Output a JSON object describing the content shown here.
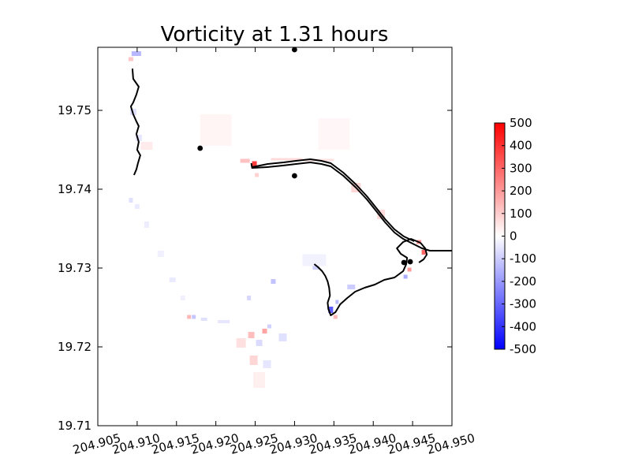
{
  "chart_data": {
    "type": "heatmap",
    "title": "Vorticity at 1.31 hours",
    "xlabel": "",
    "ylabel": "",
    "xlim": [
      204.905,
      204.95
    ],
    "ylim": [
      19.71,
      19.758
    ],
    "x_ticks": [
      "204.905",
      "204.910",
      "204.915",
      "204.920",
      "204.925",
      "204.930",
      "204.935",
      "204.940",
      "204.945",
      "204.950"
    ],
    "x_tick_values": [
      204.905,
      204.91,
      204.915,
      204.92,
      204.925,
      204.93,
      204.935,
      204.94,
      204.945,
      204.95
    ],
    "y_ticks": [
      "19.71",
      "19.72",
      "19.73",
      "19.74",
      "19.75"
    ],
    "y_tick_values": [
      19.71,
      19.72,
      19.73,
      19.74,
      19.75
    ],
    "colorbar": {
      "min": -500,
      "max": 500,
      "ticks": [
        "-500",
        "-400",
        "-300",
        "-200",
        "-100",
        "0",
        "100",
        "200",
        "300",
        "400",
        "500"
      ],
      "tick_values": [
        -500,
        -400,
        -300,
        -200,
        -100,
        0,
        100,
        200,
        300,
        400,
        500
      ],
      "colormap": "bwr",
      "colors": {
        "low": "#0000ff",
        "mid": "#ffffff",
        "high": "#ff0000"
      }
    },
    "gauge_points": [
      {
        "x": 204.93,
        "y": 19.7577
      },
      {
        "x": 204.918,
        "y": 19.7452
      },
      {
        "x": 204.93,
        "y": 19.7417
      },
      {
        "x": 204.9439,
        "y": 19.7307
      },
      {
        "x": 204.9447,
        "y": 19.7308
      }
    ],
    "coastlines": [
      {
        "name": "west-shore",
        "points": [
          [
            204.9094,
            19.7553
          ],
          [
            204.9095,
            19.754
          ],
          [
            204.9102,
            19.753
          ],
          [
            204.9099,
            19.752
          ],
          [
            204.9095,
            19.751
          ],
          [
            204.9092,
            19.7505
          ],
          [
            204.9095,
            19.7495
          ],
          [
            204.9099,
            19.7486
          ],
          [
            204.9102,
            19.748
          ],
          [
            204.9099,
            19.747
          ],
          [
            204.9102,
            19.746
          ],
          [
            204.91,
            19.745
          ],
          [
            204.9104,
            19.7443
          ],
          [
            204.9101,
            19.7433
          ],
          [
            204.9099,
            19.7425
          ],
          [
            204.9096,
            19.7418
          ]
        ]
      },
      {
        "name": "main-coast",
        "points": [
          [
            204.9245,
            19.7433
          ],
          [
            204.9246,
            19.7427
          ],
          [
            204.9265,
            19.7428
          ],
          [
            204.9285,
            19.743
          ],
          [
            204.9302,
            19.7432
          ],
          [
            204.932,
            19.7434
          ],
          [
            204.9334,
            19.7432
          ],
          [
            204.9346,
            19.7429
          ],
          [
            204.9362,
            19.7417
          ],
          [
            204.9378,
            19.7402
          ],
          [
            204.9392,
            19.7387
          ],
          [
            204.9404,
            19.7372
          ],
          [
            204.9415,
            19.7358
          ],
          [
            204.9427,
            19.7345
          ],
          [
            204.9438,
            19.7337
          ],
          [
            204.9452,
            19.733
          ],
          [
            204.9462,
            19.7325
          ],
          [
            204.9472,
            19.7322
          ],
          [
            204.9487,
            19.7322
          ],
          [
            204.95,
            19.7322
          ]
        ]
      },
      {
        "name": "main-coast-inner",
        "points": [
          [
            204.9246,
            19.7428
          ],
          [
            204.9266,
            19.7432
          ],
          [
            204.9286,
            19.7434
          ],
          [
            204.9302,
            19.7436
          ],
          [
            204.932,
            19.7438
          ],
          [
            204.9334,
            19.7436
          ],
          [
            204.9346,
            19.7433
          ],
          [
            204.9362,
            19.7421
          ],
          [
            204.9378,
            19.7406
          ],
          [
            204.9392,
            19.7391
          ],
          [
            204.9404,
            19.7376
          ],
          [
            204.9415,
            19.7362
          ],
          [
            204.9427,
            19.7349
          ],
          [
            204.9439,
            19.734
          ],
          [
            204.9452,
            19.7334
          ]
        ]
      },
      {
        "name": "peninsula",
        "points": [
          [
            204.946,
            19.7332
          ],
          [
            204.9448,
            19.7337
          ],
          [
            204.9438,
            19.7333
          ],
          [
            204.943,
            19.7325
          ],
          [
            204.9435,
            19.7318
          ],
          [
            204.9443,
            19.7313
          ],
          [
            204.9442,
            19.7305
          ],
          [
            204.9438,
            19.7296
          ],
          [
            204.9427,
            19.7288
          ],
          [
            204.9414,
            19.7285
          ],
          [
            204.9402,
            19.7279
          ],
          [
            204.9389,
            19.7275
          ],
          [
            204.9377,
            19.727
          ],
          [
            204.9367,
            19.7262
          ],
          [
            204.9358,
            19.7254
          ],
          [
            204.9352,
            19.7244
          ],
          [
            204.9346,
            19.724
          ],
          [
            204.9343,
            19.7248
          ],
          [
            204.9342,
            19.7256
          ],
          [
            204.9345,
            19.7265
          ],
          [
            204.9344,
            19.7275
          ],
          [
            204.9342,
            19.7283
          ],
          [
            204.9339,
            19.729
          ],
          [
            204.9335,
            19.7296
          ],
          [
            204.933,
            19.7301
          ],
          [
            204.9325,
            19.7305
          ]
        ]
      },
      {
        "name": "peninsula-tip",
        "points": [
          [
            204.946,
            19.7332
          ],
          [
            204.9466,
            19.7325
          ],
          [
            204.9468,
            19.7317
          ],
          [
            204.9464,
            19.7311
          ],
          [
            204.9458,
            19.7307
          ]
        ]
      }
    ],
    "features": [
      {
        "x": 204.9249,
        "y": 19.7432,
        "v": 380,
        "w": 0.0006,
        "h": 0.0007
      },
      {
        "x": 204.9237,
        "y": 19.7436,
        "v": 120,
        "w": 0.0012,
        "h": 0.0005
      },
      {
        "x": 204.9252,
        "y": 19.7418,
        "v": 90,
        "w": 0.0005,
        "h": 0.0005
      },
      {
        "x": 204.929,
        "y": 19.7438,
        "v": 70,
        "w": 0.004,
        "h": 0.0003
      },
      {
        "x": 204.933,
        "y": 19.7437,
        "v": 60,
        "w": 0.004,
        "h": 0.0003
      },
      {
        "x": 204.9378,
        "y": 19.7402,
        "v": 80,
        "w": 0.0012,
        "h": 0.0012
      },
      {
        "x": 204.941,
        "y": 19.7368,
        "v": 70,
        "w": 0.001,
        "h": 0.0012
      },
      {
        "x": 204.9464,
        "y": 19.732,
        "v": 300,
        "w": 0.0005,
        "h": 0.0006
      },
      {
        "x": 204.9458,
        "y": 19.7333,
        "v": 220,
        "w": 0.0006,
        "h": 0.0005
      },
      {
        "x": 204.9446,
        "y": 19.7298,
        "v": 200,
        "w": 0.0005,
        "h": 0.0005
      },
      {
        "x": 204.9441,
        "y": 19.7289,
        "v": -160,
        "w": 0.0005,
        "h": 0.0005
      },
      {
        "x": 204.9346,
        "y": 19.7247,
        "v": -320,
        "w": 0.0006,
        "h": 0.0008
      },
      {
        "x": 204.9354,
        "y": 19.7257,
        "v": -140,
        "w": 0.0004,
        "h": 0.0005
      },
      {
        "x": 204.9352,
        "y": 19.7238,
        "v": 140,
        "w": 0.0005,
        "h": 0.0005
      },
      {
        "x": 204.9372,
        "y": 19.7276,
        "v": -100,
        "w": 0.001,
        "h": 0.0006
      },
      {
        "x": 204.9327,
        "y": 19.7302,
        "v": -100,
        "w": 0.0008,
        "h": 0.0008
      },
      {
        "x": 204.9317,
        "y": 19.7307,
        "v": -60,
        "w": 0.0008,
        "h": 0.0006
      },
      {
        "x": 204.9273,
        "y": 19.7283,
        "v": -120,
        "w": 0.0006,
        "h": 0.0006
      },
      {
        "x": 204.9242,
        "y": 19.7262,
        "v": -80,
        "w": 0.0005,
        "h": 0.0006
      },
      {
        "x": 204.9099,
        "y": 19.7572,
        "v": -140,
        "w": 0.0012,
        "h": 0.0006
      },
      {
        "x": 204.9092,
        "y": 19.7565,
        "v": 110,
        "w": 0.0006,
        "h": 0.0005
      },
      {
        "x": 204.9095,
        "y": 19.7498,
        "v": -60,
        "w": 0.0008,
        "h": 0.0008
      },
      {
        "x": 204.9102,
        "y": 19.7465,
        "v": -50,
        "w": 0.0008,
        "h": 0.0008
      },
      {
        "x": 204.9112,
        "y": 19.7455,
        "v": 40,
        "w": 0.0015,
        "h": 0.001
      },
      {
        "x": 204.9092,
        "y": 19.7386,
        "v": -60,
        "w": 0.0005,
        "h": 0.0006
      },
      {
        "x": 204.91,
        "y": 19.7378,
        "v": -40,
        "w": 0.0006,
        "h": 0.0006
      },
      {
        "x": 204.9112,
        "y": 19.7355,
        "v": -35,
        "w": 0.0006,
        "h": 0.0008
      },
      {
        "x": 204.913,
        "y": 19.7318,
        "v": -30,
        "w": 0.0008,
        "h": 0.0008
      },
      {
        "x": 204.9145,
        "y": 19.7285,
        "v": -40,
        "w": 0.0008,
        "h": 0.0006
      },
      {
        "x": 204.9158,
        "y": 19.7262,
        "v": -30,
        "w": 0.0006,
        "h": 0.0006
      },
      {
        "x": 204.9166,
        "y": 19.7238,
        "v": 140,
        "w": 0.0005,
        "h": 0.0005
      },
      {
        "x": 204.9172,
        "y": 19.7238,
        "v": -110,
        "w": 0.0005,
        "h": 0.0005
      },
      {
        "x": 204.9185,
        "y": 19.7235,
        "v": -60,
        "w": 0.0008,
        "h": 0.0004
      },
      {
        "x": 204.921,
        "y": 19.7232,
        "v": -50,
        "w": 0.0015,
        "h": 0.0004
      },
      {
        "x": 204.9262,
        "y": 19.722,
        "v": 180,
        "w": 0.0006,
        "h": 0.0006
      },
      {
        "x": 204.9268,
        "y": 19.7226,
        "v": -90,
        "w": 0.0005,
        "h": 0.0005
      },
      {
        "x": 204.9245,
        "y": 19.7215,
        "v": 130,
        "w": 0.0008,
        "h": 0.0008
      },
      {
        "x": 204.9255,
        "y": 19.7205,
        "v": -70,
        "w": 0.0008,
        "h": 0.0008
      },
      {
        "x": 204.9232,
        "y": 19.7205,
        "v": 60,
        "w": 0.0012,
        "h": 0.0012
      },
      {
        "x": 204.9285,
        "y": 19.7212,
        "v": -60,
        "w": 0.001,
        "h": 0.001
      },
      {
        "x": 204.9248,
        "y": 19.7183,
        "v": 80,
        "w": 0.001,
        "h": 0.0012
      },
      {
        "x": 204.9265,
        "y": 19.7178,
        "v": -50,
        "w": 0.001,
        "h": 0.001
      },
      {
        "x": 204.9255,
        "y": 19.7158,
        "v": 30,
        "w": 0.0015,
        "h": 0.002
      },
      {
        "x": 204.92,
        "y": 19.7475,
        "v": 20,
        "w": 0.004,
        "h": 0.004
      },
      {
        "x": 204.935,
        "y": 19.747,
        "v": 15,
        "w": 0.004,
        "h": 0.004
      },
      {
        "x": 204.9325,
        "y": 19.731,
        "v": -25,
        "w": 0.003,
        "h": 0.0015
      }
    ]
  }
}
